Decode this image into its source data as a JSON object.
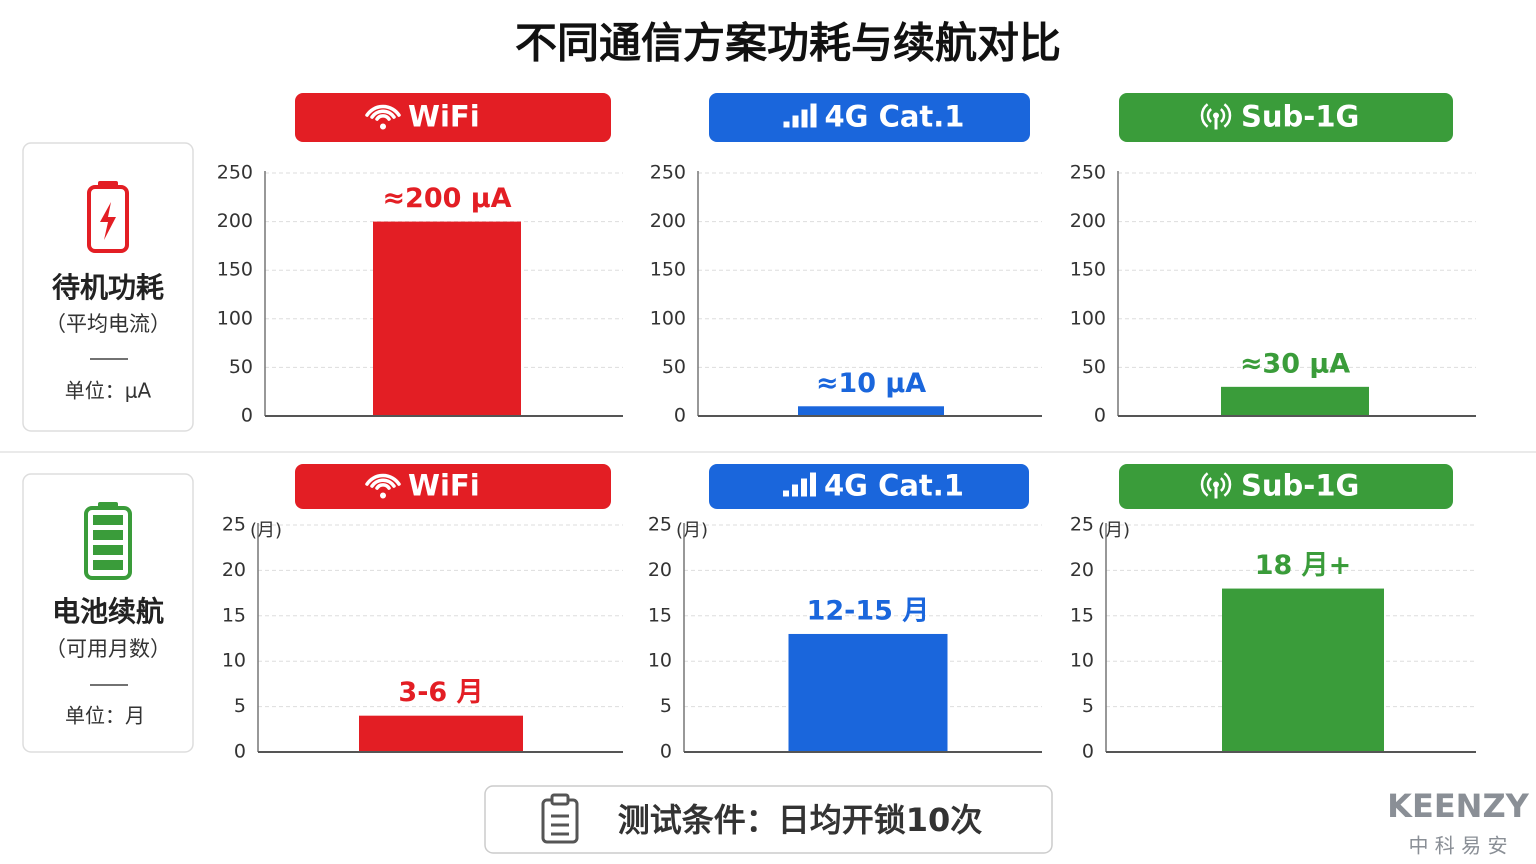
{
  "title": "不同通信方案功耗与续航对比",
  "rows": [
    {
      "label": "待机功耗",
      "sublabel": "（平均电流）",
      "unit": "单位：μA"
    },
    {
      "label": "电池续航",
      "sublabel": "（可用月数）",
      "unit": "单位：月"
    }
  ],
  "chart_data": [
    {
      "type": "bar",
      "title": "WiFi",
      "color": "#e31e24",
      "categories": [
        null
      ],
      "values": [
        200
      ],
      "value_labels": [
        "≈200 μA"
      ],
      "ylim": [
        0,
        250
      ],
      "yticks": [
        0,
        50,
        100,
        150,
        200,
        250
      ],
      "grid": true
    },
    {
      "type": "bar",
      "title": "4G Cat.1",
      "color": "#1a66dc",
      "categories": [
        null
      ],
      "values": [
        10
      ],
      "value_labels": [
        "≈10 μA"
      ],
      "ylim": [
        0,
        250
      ],
      "yticks": [
        0,
        50,
        100,
        150,
        200,
        250
      ],
      "grid": true
    },
    {
      "type": "bar",
      "title": "Sub-1G",
      "color": "#3a9c3a",
      "categories": [
        null
      ],
      "values": [
        30
      ],
      "value_labels": [
        "≈30 μA"
      ],
      "ylim": [
        0,
        250
      ],
      "yticks": [
        0,
        50,
        100,
        150,
        200,
        250
      ],
      "grid": true
    },
    {
      "type": "bar",
      "title": "WiFi",
      "color": "#e31e24",
      "categories": [
        null
      ],
      "values": [
        4
      ],
      "value_labels": [
        "3-6 月"
      ],
      "y_unit": "(月)",
      "ylim": [
        0,
        25
      ],
      "yticks": [
        0,
        5,
        10,
        15,
        20,
        25
      ],
      "grid": true
    },
    {
      "type": "bar",
      "title": "4G Cat.1",
      "color": "#1a66dc",
      "categories": [
        null
      ],
      "values": [
        13
      ],
      "value_labels": [
        "12-15 月"
      ],
      "y_unit": "(月)",
      "ylim": [
        0,
        25
      ],
      "yticks": [
        0,
        5,
        10,
        15,
        20,
        25
      ],
      "grid": true
    },
    {
      "type": "bar",
      "title": "Sub-1G",
      "color": "#3a9c3a",
      "categories": [
        null
      ],
      "values": [
        18
      ],
      "value_labels": [
        "18 月+"
      ],
      "y_unit": "(月)",
      "ylim": [
        0,
        25
      ],
      "yticks": [
        0,
        5,
        10,
        15,
        20,
        25
      ],
      "grid": true
    }
  ],
  "footer": "测试条件：日均开锁10次",
  "logo": {
    "name": "KEENZY",
    "subtitle": "中 科 易 安"
  }
}
